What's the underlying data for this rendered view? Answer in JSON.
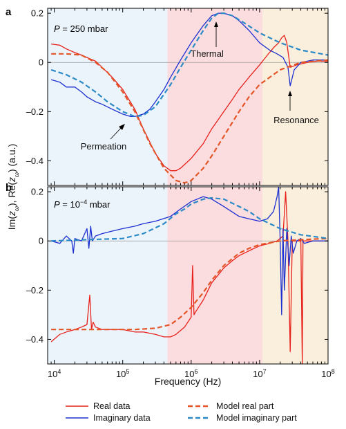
{
  "figure": {
    "xlabel": "Frequency (Hz)",
    "ylabel_prefix": "Im(",
    "ylabel_mid": "), Re(",
    "ylabel_suffix": ") (a.u.)",
    "ylabel_var": "z",
    "ylabel_sub": "ω",
    "x_ticks": [
      {
        "base": "10",
        "exp": "4",
        "value": 10000
      },
      {
        "base": "10",
        "exp": "5",
        "value": 100000
      },
      {
        "base": "10",
        "exp": "6",
        "value": 1000000
      },
      {
        "base": "10",
        "exp": "7",
        "value": 10000000
      },
      {
        "base": "10",
        "exp": "8",
        "value": 100000000
      }
    ],
    "xlim": [
      8000,
      100000000
    ],
    "bands": [
      {
        "from": 8000,
        "to": 450000,
        "color": "#ebf4fb"
      },
      {
        "from": 450000,
        "to": 11000000,
        "color": "#fbdde0"
      },
      {
        "from": 11000000,
        "to": 100000000,
        "color": "#faefdc"
      }
    ],
    "colors": {
      "real": "#e8201a",
      "imag": "#1c2fd0",
      "model_real": "#e35526",
      "model_imag": "#2b8ac6"
    }
  },
  "legend": [
    {
      "label": "Real data",
      "color": "#e8201a",
      "style": "solid"
    },
    {
      "label": "Imaginary data",
      "color": "#1c2fd0",
      "style": "solid"
    },
    {
      "label": "Model real part",
      "color": "#e35526",
      "style": "dashed"
    },
    {
      "label": "Model imaginary part",
      "color": "#2b8ac6",
      "style": "dashed"
    }
  ],
  "chart_data": [
    {
      "panel": "a",
      "type": "line",
      "pressure_label": "P",
      "pressure_value": " = 250 mbar",
      "ylim": [
        -0.5,
        0.22
      ],
      "y_ticks": [
        "0.2",
        "0",
        "–0.2",
        "–0.4"
      ],
      "y_tick_values": [
        0.2,
        0,
        -0.2,
        -0.4
      ],
      "annotations": [
        {
          "text": "Thermal",
          "x": 2300000,
          "y": 0.19
        },
        {
          "text": "Permeation",
          "x": 170000,
          "y": -0.22
        },
        {
          "text": "Resonance",
          "x": 28000000,
          "y": -0.095
        }
      ],
      "series": [
        {
          "name": "Real data",
          "style": "solid",
          "color": "#e8201a",
          "x": [
            9000,
            12000,
            15000,
            20000,
            25000,
            30000,
            40000,
            50000,
            70000,
            100000,
            150000,
            200000,
            300000,
            400000,
            500000,
            600000,
            700000,
            1000000,
            1500000,
            2000000,
            3000000,
            4000000,
            5000000,
            7000000,
            10000000,
            13000000,
            16000000,
            19000000,
            21000000,
            23000000,
            25000000,
            28000000,
            35000000,
            50000000,
            70000000,
            100000000
          ],
          "y": [
            0.075,
            0.07,
            0.055,
            0.04,
            0.03,
            0.02,
            0.005,
            -0.02,
            -0.06,
            -0.11,
            -0.19,
            -0.27,
            -0.37,
            -0.42,
            -0.44,
            -0.44,
            -0.43,
            -0.39,
            -0.33,
            -0.27,
            -0.2,
            -0.15,
            -0.11,
            -0.06,
            -0.01,
            0.03,
            0.06,
            0.08,
            0.1,
            0.11,
            0.08,
            -0.02,
            -0.01,
            0.0,
            0.005,
            0.005
          ]
        },
        {
          "name": "Imaginary data",
          "style": "solid",
          "color": "#1c2fd0",
          "x": [
            9000,
            12000,
            15000,
            20000,
            25000,
            30000,
            40000,
            50000,
            70000,
            100000,
            130000,
            150000,
            200000,
            250000,
            300000,
            400000,
            500000,
            700000,
            1000000,
            1500000,
            2000000,
            2500000,
            3000000,
            4000000,
            5000000,
            7000000,
            10000000,
            14000000,
            18000000,
            22000000,
            26000000,
            28000000,
            32000000,
            40000000,
            60000000,
            100000000
          ],
          "y": [
            -0.07,
            -0.08,
            -0.1,
            -0.1,
            -0.12,
            -0.14,
            -0.16,
            -0.17,
            -0.19,
            -0.21,
            -0.22,
            -0.22,
            -0.21,
            -0.19,
            -0.16,
            -0.11,
            -0.06,
            0.01,
            0.08,
            0.15,
            0.19,
            0.2,
            0.2,
            0.19,
            0.17,
            0.13,
            0.08,
            0.05,
            0.035,
            0.02,
            -0.02,
            -0.095,
            -0.03,
            0.0,
            0.01,
            0.01
          ]
        },
        {
          "name": "Model real part",
          "style": "dashed",
          "color": "#e35526",
          "x": [
            9000,
            15000,
            25000,
            40000,
            60000,
            100000,
            150000,
            250000,
            400000,
            600000,
            800000,
            1000000,
            1500000,
            2000000,
            3000000,
            5000000,
            7000000,
            10000000,
            20000000,
            40000000,
            100000000
          ],
          "y": [
            0.035,
            0.035,
            0.03,
            0.0,
            -0.04,
            -0.12,
            -0.2,
            -0.33,
            -0.43,
            -0.48,
            -0.49,
            -0.48,
            -0.43,
            -0.38,
            -0.3,
            -0.2,
            -0.14,
            -0.09,
            -0.03,
            0.0,
            0.01
          ]
        },
        {
          "name": "Model imaginary part",
          "style": "dashed",
          "color": "#2b8ac6",
          "x": [
            9000,
            15000,
            25000,
            40000,
            60000,
            100000,
            150000,
            200000,
            300000,
            500000,
            700000,
            1000000,
            1500000,
            2000000,
            2500000,
            3000000,
            4000000,
            6000000,
            10000000,
            20000000,
            40000000,
            100000000
          ],
          "y": [
            -0.03,
            -0.05,
            -0.08,
            -0.12,
            -0.16,
            -0.2,
            -0.22,
            -0.215,
            -0.18,
            -0.09,
            -0.02,
            0.05,
            0.13,
            0.18,
            0.2,
            0.2,
            0.19,
            0.16,
            0.12,
            0.08,
            0.05,
            0.03
          ]
        }
      ]
    },
    {
      "panel": "b",
      "type": "line",
      "pressure_label": "P",
      "pressure_value": " = 10",
      "pressure_exp": "−4",
      "pressure_unit": " mbar",
      "ylim": [
        -0.5,
        0.22
      ],
      "y_ticks": [
        "0.2",
        "0",
        "–0.2",
        "–0.4"
      ],
      "y_tick_values": [
        0.2,
        0,
        -0.2,
        -0.4
      ],
      "series": [
        {
          "name": "Real data",
          "style": "solid",
          "color": "#e8201a",
          "x": [
            9000,
            12000,
            15000,
            20000,
            25000,
            30000,
            33000,
            35000,
            37000,
            40000,
            50000,
            70000,
            100000,
            150000,
            200000,
            300000,
            400000,
            500000,
            600000,
            800000,
            1000000,
            1050000,
            1100000,
            1150000,
            1500000,
            2000000,
            3000000,
            4000000,
            5000000,
            7000000,
            10000000,
            14000000,
            18000000,
            22000000,
            24000000,
            26000000,
            28000000,
            30000000,
            35000000,
            40000000,
            42000000,
            43000000,
            45000000,
            60000000,
            100000000
          ],
          "y": [
            -0.41,
            -0.38,
            -0.37,
            -0.36,
            -0.35,
            -0.34,
            -0.22,
            -0.36,
            -0.33,
            -0.35,
            -0.36,
            -0.36,
            -0.36,
            -0.37,
            -0.37,
            -0.38,
            -0.39,
            -0.39,
            -0.38,
            -0.35,
            -0.31,
            -0.1,
            -0.3,
            -0.29,
            -0.24,
            -0.17,
            -0.11,
            -0.08,
            -0.06,
            -0.04,
            -0.02,
            -0.01,
            0.0,
            0.02,
            0.2,
            0.0,
            -0.45,
            0.0,
            0.0,
            0.0,
            -0.5,
            0.0,
            0.0,
            0.0,
            0.0
          ]
        },
        {
          "name": "Imaginary data",
          "style": "solid",
          "color": "#1c2fd0",
          "x": [
            9000,
            12000,
            15000,
            18000,
            19000,
            20000,
            25000,
            30000,
            32000,
            34000,
            36000,
            40000,
            50000,
            70000,
            100000,
            150000,
            200000,
            300000,
            500000,
            700000,
            1000000,
            1500000,
            2000000,
            3000000,
            5000000,
            7000000,
            10000000,
            13000000,
            16000000,
            18000000,
            19000000,
            20000000,
            21000000,
            22000000,
            23000000,
            25000000,
            27000000,
            29000000,
            31000000,
            35000000,
            40000000,
            45000000,
            60000000,
            100000000
          ],
          "y": [
            0.0,
            -0.01,
            0.02,
            0.0,
            -0.05,
            0.01,
            0.0,
            0.05,
            -0.03,
            0.06,
            0.0,
            0.02,
            0.03,
            0.04,
            0.05,
            0.06,
            0.07,
            0.08,
            0.1,
            0.13,
            0.16,
            0.18,
            0.17,
            0.14,
            0.1,
            0.09,
            0.08,
            0.09,
            0.12,
            0.18,
            0.22,
            0.0,
            -0.3,
            0.05,
            -0.2,
            0.05,
            -0.1,
            0.02,
            -0.05,
            0.0,
            0.01,
            -0.01,
            0.0,
            0.0
          ]
        },
        {
          "name": "Model real part",
          "style": "dashed",
          "color": "#e35526",
          "x": [
            9000,
            20000,
            40000,
            80000,
            150000,
            300000,
            500000,
            700000,
            1000000,
            1500000,
            2000000,
            3000000,
            5000000,
            7000000,
            10000000,
            20000000,
            40000000,
            100000000
          ],
          "y": [
            -0.36,
            -0.36,
            -0.36,
            -0.36,
            -0.36,
            -0.355,
            -0.34,
            -0.31,
            -0.27,
            -0.21,
            -0.16,
            -0.1,
            -0.05,
            -0.03,
            -0.015,
            0.0,
            0.005,
            0.01
          ]
        },
        {
          "name": "Model imaginary part",
          "style": "dashed",
          "color": "#2b8ac6",
          "x": [
            9000,
            30000,
            100000,
            200000,
            400000,
            600000,
            800000,
            1000000,
            1500000,
            2000000,
            3000000,
            5000000,
            7000000,
            10000000,
            20000000,
            40000000,
            100000000
          ],
          "y": [
            0.0,
            0.005,
            0.01,
            0.03,
            0.07,
            0.11,
            0.13,
            0.15,
            0.17,
            0.175,
            0.17,
            0.14,
            0.12,
            0.09,
            0.05,
            0.025,
            0.01
          ]
        }
      ]
    }
  ]
}
